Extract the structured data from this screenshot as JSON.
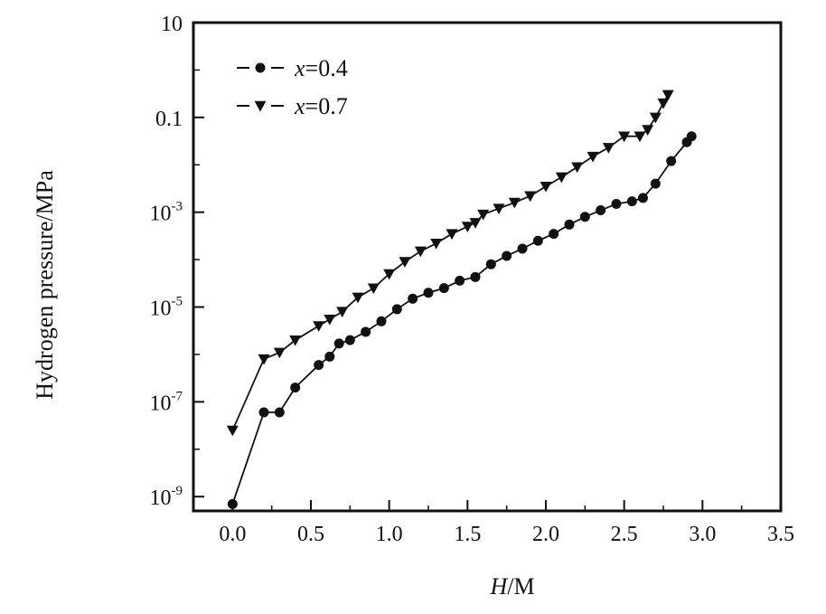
{
  "chart_data": {
    "type": "line",
    "xlabel": "H/M",
    "ylabel": "Hydrogen pressure/MPa",
    "y_scale": "log",
    "xlim": [
      -0.25,
      3.5
    ],
    "ylim": [
      5e-10,
      10
    ],
    "x_ticks": [
      "0.0",
      "0.5",
      "1.0",
      "1.5",
      "2.0",
      "2.5",
      "3.0",
      "3.5"
    ],
    "y_ticks": [
      {
        "base": "10",
        "exp": ""
      },
      {
        "base": "0.1",
        "exp": ""
      },
      {
        "base": "10",
        "exp": "-3"
      },
      {
        "base": "10",
        "exp": "-5"
      },
      {
        "base": "10",
        "exp": "-7"
      },
      {
        "base": "10",
        "exp": "-9"
      }
    ],
    "grid": false,
    "legend_position": "top-left",
    "series": [
      {
        "name": "x=0.4",
        "marker": "circle",
        "color": "#111111",
        "points": [
          [
            0.0,
            7e-10
          ],
          [
            0.2,
            6e-08
          ],
          [
            0.3,
            6e-08
          ],
          [
            0.4,
            2e-07
          ],
          [
            0.55,
            6e-07
          ],
          [
            0.62,
            9e-07
          ],
          [
            0.68,
            1.7e-06
          ],
          [
            0.75,
            2e-06
          ],
          [
            0.85,
            3e-06
          ],
          [
            0.95,
            5e-06
          ],
          [
            1.05,
            9e-06
          ],
          [
            1.15,
            1.5e-05
          ],
          [
            1.25,
            2e-05
          ],
          [
            1.35,
            2.5e-05
          ],
          [
            1.45,
            3.6e-05
          ],
          [
            1.55,
            4.3e-05
          ],
          [
            1.65,
            8e-05
          ],
          [
            1.75,
            0.00012
          ],
          [
            1.85,
            0.00017
          ],
          [
            1.95,
            0.00025
          ],
          [
            2.05,
            0.00035
          ],
          [
            2.15,
            0.00055
          ],
          [
            2.25,
            0.0008
          ],
          [
            2.35,
            0.0011
          ],
          [
            2.45,
            0.0015
          ],
          [
            2.55,
            0.0017
          ],
          [
            2.62,
            0.002
          ],
          [
            2.7,
            0.004
          ],
          [
            2.8,
            0.012
          ],
          [
            2.9,
            0.03
          ],
          [
            2.93,
            0.04
          ]
        ]
      },
      {
        "name": "x=0.7",
        "marker": "triangle-down",
        "color": "#111111",
        "points": [
          [
            0.0,
            2.5e-08
          ],
          [
            0.2,
            8e-07
          ],
          [
            0.3,
            1.1e-06
          ],
          [
            0.4,
            2e-06
          ],
          [
            0.55,
            4e-06
          ],
          [
            0.62,
            5.5e-06
          ],
          [
            0.7,
            8e-06
          ],
          [
            0.8,
            1.6e-05
          ],
          [
            0.9,
            2.5e-05
          ],
          [
            1.0,
            5e-05
          ],
          [
            1.1,
            9e-05
          ],
          [
            1.2,
            0.00015
          ],
          [
            1.3,
            0.00022
          ],
          [
            1.4,
            0.00035
          ],
          [
            1.5,
            0.0005
          ],
          [
            1.55,
            0.0006
          ],
          [
            1.6,
            0.0009
          ],
          [
            1.7,
            0.0012
          ],
          [
            1.8,
            0.0016
          ],
          [
            1.9,
            0.0022
          ],
          [
            2.0,
            0.0035
          ],
          [
            2.1,
            0.0055
          ],
          [
            2.2,
            0.009
          ],
          [
            2.3,
            0.015
          ],
          [
            2.4,
            0.023
          ],
          [
            2.5,
            0.04
          ],
          [
            2.6,
            0.04
          ],
          [
            2.65,
            0.055
          ],
          [
            2.7,
            0.1
          ],
          [
            2.75,
            0.2
          ],
          [
            2.78,
            0.3
          ]
        ]
      }
    ]
  }
}
